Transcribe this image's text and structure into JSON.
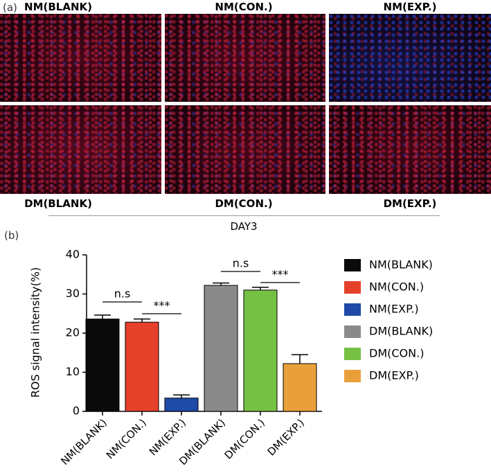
{
  "panel_a": {
    "label": "(a)",
    "top_labels": [
      "NM(BLANK)",
      "NM(CON.)",
      "NM(EXP.)"
    ],
    "bottom_labels": [
      "DM(BLANK)",
      "DM(CON.)",
      "DM(EXP.)"
    ],
    "caption": "DAY3"
  },
  "chart_data": {
    "type": "bar",
    "panel_label": "(b)",
    "y_label": "ROS signal intensity(%)",
    "categories": [
      "NM(BLANK)",
      "NM(CON.)",
      "NM(EXP.)",
      "DM(BLANK)",
      "DM(CON.)",
      "DM(EXP.)"
    ],
    "values": [
      23.6,
      22.8,
      3.4,
      32.2,
      31,
      12.2
    ],
    "errors": [
      1,
      0.8,
      0.8,
      0.6,
      0.7,
      2.3
    ],
    "colors": [
      "#0a0a0a",
      "#e5402a",
      "#1f4aa8",
      "#8a8a8a",
      "#76c043",
      "#eaa03a"
    ],
    "ylim": [
      0,
      40
    ],
    "yticks": [
      0,
      10,
      20,
      30,
      40
    ],
    "annotations": [
      "n.s",
      "***",
      "n.s",
      "***"
    ]
  }
}
